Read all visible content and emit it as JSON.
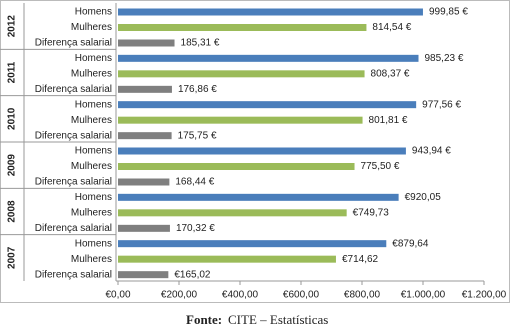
{
  "chart_data": {
    "type": "bar",
    "orientation": "horizontal",
    "groups": [
      "2012",
      "2011",
      "2010",
      "2009",
      "2008",
      "2007"
    ],
    "series": [
      {
        "name": "Homens",
        "color": "#4a7ebb",
        "values": [
          999.85,
          985.23,
          977.56,
          943.94,
          920.05,
          879.64
        ],
        "value_labels": [
          "999,85 €",
          "985,23 €",
          "977,56 €",
          "943,94 €",
          "€920,05",
          "€879,64"
        ]
      },
      {
        "name": "Mulheres",
        "color": "#9bbb59",
        "values": [
          814.54,
          808.37,
          801.81,
          775.5,
          749.73,
          714.62
        ],
        "value_labels": [
          "814,54 €",
          "808,37 €",
          "801,81 €",
          "775,50 €",
          "€749,73",
          "€714,62"
        ]
      },
      {
        "name": "Diferença salarial",
        "color": "#7f7f7f",
        "values": [
          185.31,
          176.86,
          175.75,
          168.44,
          170.32,
          165.02
        ],
        "value_labels": [
          "185,31 €",
          "176,86 €",
          "175,75 €",
          "168,44 €",
          "170,32 €",
          "€165,02"
        ]
      }
    ],
    "xlim": [
      0,
      1200
    ],
    "xticks": [
      {
        "value": 0,
        "label": "€0,00"
      },
      {
        "value": 200,
        "label": "€200,00"
      },
      {
        "value": 400,
        "label": "€400,00"
      },
      {
        "value": 600,
        "label": "€600,00"
      },
      {
        "value": 800,
        "label": "€800,00"
      },
      {
        "value": 1000,
        "label": "€1.000,00"
      },
      {
        "value": 1200,
        "label": "€1.200,00"
      }
    ],
    "source_label": "Fonte:",
    "source": "CITE – Estatísticas"
  }
}
